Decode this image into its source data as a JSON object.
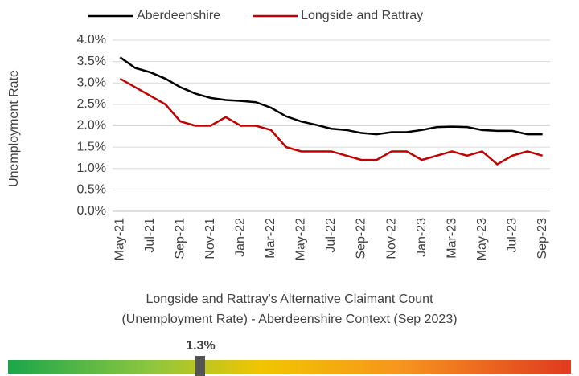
{
  "chart_data": {
    "type": "line",
    "y_label": "Unemployment Rate",
    "categories": [
      "May-21",
      null,
      "Jul-21",
      null,
      "Sep-21",
      null,
      "Nov-21",
      null,
      "Jan-22",
      null,
      "Mar-22",
      null,
      "May-22",
      null,
      "Jul-22",
      null,
      "Sep-22",
      null,
      "Nov-22",
      null,
      "Jan-23",
      null,
      "Mar-23",
      null,
      "May-23",
      null,
      "Jul-23",
      null,
      "Sep-23"
    ],
    "series": [
      {
        "name": "Aberdeenshire",
        "color": "#000000",
        "values": [
          3.6,
          3.35,
          3.25,
          3.1,
          2.9,
          2.75,
          2.65,
          2.6,
          2.58,
          2.55,
          2.42,
          2.22,
          2.1,
          2.02,
          1.93,
          1.9,
          1.83,
          1.8,
          1.85,
          1.85,
          1.9,
          1.97,
          1.98,
          1.97,
          1.9,
          1.88,
          1.88,
          1.8,
          1.8
        ]
      },
      {
        "name": "Longside and Rattray",
        "color": "#c00000",
        "values": [
          3.1,
          2.9,
          2.7,
          2.5,
          2.1,
          2.0,
          2.0,
          2.2,
          2.0,
          2.0,
          1.9,
          1.5,
          1.4,
          1.4,
          1.4,
          1.3,
          1.2,
          1.2,
          1.4,
          1.4,
          1.2,
          1.3,
          1.4,
          1.3,
          1.4,
          1.1,
          1.3,
          1.4,
          1.3
        ]
      }
    ],
    "ylim": [
      0,
      4
    ],
    "yticks": [
      {
        "value": 0,
        "label": "0.0%"
      },
      {
        "value": 0.5,
        "label": "0.5%"
      },
      {
        "value": 1,
        "label": "1.0%"
      },
      {
        "value": 1.5,
        "label": "1.5%"
      },
      {
        "value": 2,
        "label": "2.0%"
      },
      {
        "value": 2.5,
        "label": "2.5%"
      },
      {
        "value": 3,
        "label": "3.0%"
      },
      {
        "value": 3.5,
        "label": "3.5%"
      },
      {
        "value": 4,
        "label": "4.0%"
      }
    ],
    "grid": true,
    "legend": "top"
  },
  "context": {
    "title": "Longside and Rattray's Alternative Claimant Count (Unemployment Rate) - Aberdeenshire Context (Sep 2023)",
    "value": 1.3,
    "value_label": "1.3%",
    "lim": [
      0,
      3.8
    ]
  }
}
